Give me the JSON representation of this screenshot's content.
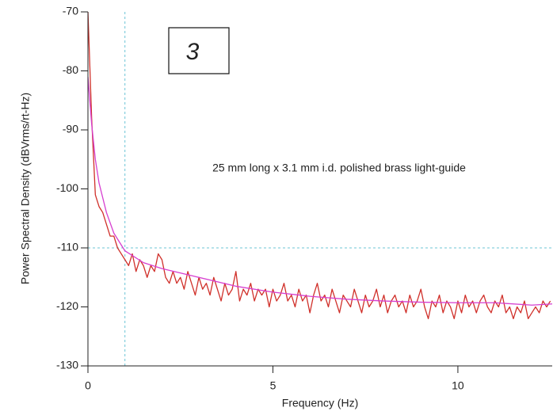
{
  "chart_data": {
    "type": "line",
    "panel_label": "3",
    "annotation": "25 mm long x 3.1 mm i.d. polished brass light-guide",
    "xlabel": "Frequency (Hz)",
    "ylabel": "Power Spectral Density (dBVrms/rt-Hz)",
    "xlim": [
      0,
      12.55
    ],
    "ylim": [
      -130,
      -70
    ],
    "xticks": [
      0,
      5,
      10
    ],
    "yticks": [
      -70,
      -80,
      -90,
      -100,
      -110,
      -120,
      -130
    ],
    "vlines": [
      1
    ],
    "hlines": [
      -110
    ],
    "series": [
      {
        "color": "#d0302a",
        "x": [
          0,
          0.1,
          0.2,
          0.3,
          0.4,
          0.5,
          0.6,
          0.7,
          0.8,
          0.9,
          1,
          1.1,
          1.2,
          1.3,
          1.4,
          1.5,
          1.6,
          1.7,
          1.8,
          1.9,
          2,
          2.1,
          2.2,
          2.3,
          2.4,
          2.5,
          2.6,
          2.7,
          2.8,
          2.9,
          3,
          3.1,
          3.2,
          3.3,
          3.4,
          3.5,
          3.6,
          3.7,
          3.8,
          3.9,
          4,
          4.1,
          4.2,
          4.3,
          4.4,
          4.5,
          4.6,
          4.7,
          4.8,
          4.9,
          5,
          5.1,
          5.2,
          5.3,
          5.4,
          5.5,
          5.6,
          5.7,
          5.8,
          5.9,
          6,
          6.1,
          6.2,
          6.3,
          6.4,
          6.5,
          6.6,
          6.7,
          6.8,
          6.9,
          7,
          7.1,
          7.2,
          7.3,
          7.4,
          7.5,
          7.6,
          7.7,
          7.8,
          7.9,
          8,
          8.1,
          8.2,
          8.3,
          8.4,
          8.5,
          8.6,
          8.7,
          8.8,
          8.9,
          9,
          9.1,
          9.2,
          9.3,
          9.4,
          9.5,
          9.6,
          9.7,
          9.8,
          9.9,
          10,
          10.1,
          10.2,
          10.3,
          10.4,
          10.5,
          10.6,
          10.7,
          10.8,
          10.9,
          11,
          11.1,
          11.2,
          11.3,
          11.4,
          11.5,
          11.6,
          11.7,
          11.8,
          11.9,
          12,
          12.1,
          12.2,
          12.3,
          12.4,
          12.5
        ],
        "values": [
          -70,
          -88,
          -101,
          -103,
          -104,
          -106,
          -108,
          -108,
          -110,
          -111,
          -112,
          -113,
          -111,
          -114,
          -112,
          -113,
          -115,
          -113,
          -114,
          -111,
          -112,
          -115,
          -116,
          -114,
          -116,
          -115,
          -117,
          -114,
          -116,
          -118,
          -115,
          -117,
          -116,
          -118,
          -115,
          -117,
          -119,
          -116,
          -118,
          -117,
          -114,
          -119,
          -117,
          -118,
          -116,
          -119,
          -117,
          -118,
          -117,
          -120,
          -117,
          -119,
          -118,
          -116,
          -119,
          -118,
          -120,
          -117,
          -119,
          -118,
          -121,
          -118,
          -116,
          -119,
          -118,
          -120,
          -117,
          -119,
          -121,
          -118,
          -119,
          -120,
          -117,
          -119,
          -121,
          -118,
          -120,
          -119,
          -117,
          -120,
          -118,
          -121,
          -119,
          -118,
          -120,
          -119,
          -121,
          -118,
          -120,
          -119,
          -117,
          -120,
          -122,
          -119,
          -120,
          -118,
          -121,
          -119,
          -120,
          -122,
          -119,
          -121,
          -118,
          -120,
          -119,
          -121,
          -119,
          -118,
          -120,
          -121,
          -119,
          -120,
          -118,
          -121,
          -120,
          -122,
          -120,
          -121,
          -119,
          -122,
          -121,
          -120,
          -121,
          -119,
          -120,
          -119
        ]
      },
      {
        "color": "#d63fd0",
        "x": [
          0,
          0.1,
          0.2,
          0.3,
          0.5,
          0.7,
          1,
          1.5,
          2,
          3,
          4,
          5,
          6,
          7,
          8,
          9,
          10,
          11,
          12,
          12.55
        ],
        "values": [
          -81,
          -89,
          -95,
          -99,
          -104,
          -107.5,
          -110.5,
          -112.5,
          -113.5,
          -115,
          -116.5,
          -117.5,
          -118.2,
          -118.7,
          -119,
          -119.2,
          -119.3,
          -119.3,
          -119.7,
          -119.5
        ]
      }
    ]
  }
}
